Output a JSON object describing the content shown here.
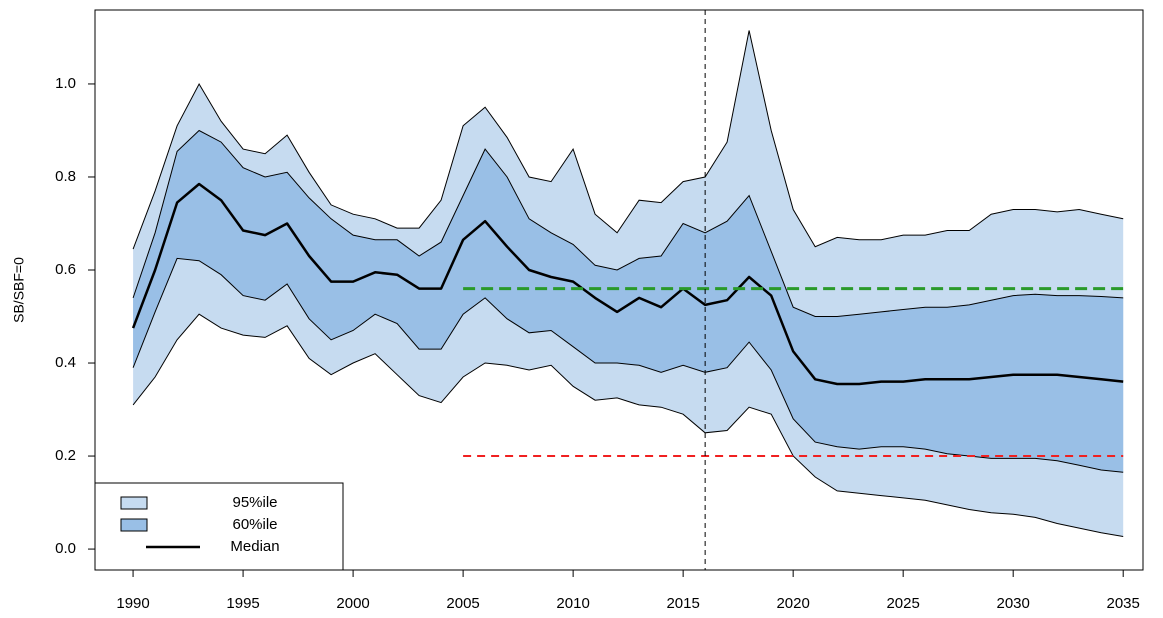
{
  "chart_data": {
    "type": "band",
    "y_label": "SB/SBF=0",
    "x": [
      1990,
      1991,
      1992,
      1993,
      1994,
      1995,
      1996,
      1997,
      1998,
      1999,
      2000,
      2001,
      2002,
      2003,
      2004,
      2005,
      2006,
      2007,
      2008,
      2009,
      2010,
      2011,
      2012,
      2013,
      2014,
      2015,
      2016,
      2017,
      2018,
      2019,
      2020,
      2021,
      2022,
      2023,
      2024,
      2025,
      2026,
      2027,
      2028,
      2029,
      2030,
      2031,
      2032,
      2033,
      2034,
      2035
    ],
    "bands": [
      {
        "name": "95%ile",
        "color": "#c6dbf0",
        "upper": [
          0.645,
          0.77,
          0.91,
          1.0,
          0.92,
          0.86,
          0.85,
          0.89,
          0.81,
          0.74,
          0.72,
          0.71,
          0.69,
          0.69,
          0.75,
          0.91,
          0.95,
          0.885,
          0.8,
          0.79,
          0.86,
          0.72,
          0.68,
          0.75,
          0.745,
          0.79,
          0.8,
          0.875,
          1.115,
          0.9,
          0.73,
          0.65,
          0.67,
          0.665,
          0.665,
          0.675,
          0.675,
          0.685,
          0.685,
          0.72,
          0.73,
          0.73,
          0.725,
          0.73,
          0.72,
          0.71
        ],
        "lower": [
          0.31,
          0.37,
          0.45,
          0.505,
          0.475,
          0.46,
          0.455,
          0.48,
          0.41,
          0.375,
          0.4,
          0.42,
          0.375,
          0.33,
          0.315,
          0.37,
          0.4,
          0.395,
          0.385,
          0.395,
          0.35,
          0.32,
          0.325,
          0.31,
          0.305,
          0.29,
          0.25,
          0.255,
          0.305,
          0.29,
          0.2,
          0.155,
          0.125,
          0.12,
          0.115,
          0.11,
          0.105,
          0.095,
          0.085,
          0.078,
          0.075,
          0.068,
          0.055,
          0.045,
          0.035,
          0.027
        ]
      },
      {
        "name": "60%ile",
        "color": "#99bfe6",
        "upper": [
          0.54,
          0.68,
          0.855,
          0.9,
          0.875,
          0.82,
          0.8,
          0.81,
          0.755,
          0.71,
          0.675,
          0.665,
          0.665,
          0.63,
          0.66,
          0.76,
          0.86,
          0.8,
          0.71,
          0.68,
          0.655,
          0.61,
          0.6,
          0.625,
          0.63,
          0.7,
          0.68,
          0.705,
          0.76,
          0.64,
          0.52,
          0.5,
          0.5,
          0.505,
          0.51,
          0.515,
          0.52,
          0.52,
          0.525,
          0.535,
          0.545,
          0.548,
          0.545,
          0.545,
          0.543,
          0.54
        ],
        "lower": [
          0.39,
          0.51,
          0.625,
          0.62,
          0.59,
          0.545,
          0.535,
          0.57,
          0.495,
          0.45,
          0.47,
          0.505,
          0.485,
          0.43,
          0.43,
          0.505,
          0.54,
          0.495,
          0.465,
          0.47,
          0.435,
          0.4,
          0.4,
          0.395,
          0.38,
          0.395,
          0.38,
          0.39,
          0.445,
          0.385,
          0.28,
          0.23,
          0.22,
          0.215,
          0.22,
          0.22,
          0.215,
          0.205,
          0.2,
          0.195,
          0.195,
          0.195,
          0.19,
          0.18,
          0.17,
          0.165
        ]
      }
    ],
    "series": [
      {
        "name": "Median",
        "color": "#000000",
        "values": [
          0.475,
          0.6,
          0.745,
          0.785,
          0.75,
          0.685,
          0.675,
          0.7,
          0.63,
          0.575,
          0.575,
          0.595,
          0.59,
          0.56,
          0.56,
          0.665,
          0.705,
          0.65,
          0.6,
          0.585,
          0.575,
          0.54,
          0.51,
          0.54,
          0.52,
          0.56,
          0.525,
          0.535,
          0.585,
          0.545,
          0.425,
          0.365,
          0.355,
          0.355,
          0.36,
          0.36,
          0.365,
          0.365,
          0.365,
          0.37,
          0.375,
          0.375,
          0.375,
          0.37,
          0.365,
          0.36
        ]
      }
    ],
    "hlines": [
      {
        "y": 0.56,
        "x": [
          2005,
          2035
        ],
        "color": "#2a9a2a"
      },
      {
        "y": 0.2,
        "x": [
          2005,
          2035
        ],
        "color": "#f02020"
      }
    ],
    "vlines": [
      {
        "x": 2016,
        "color": "#000000"
      }
    ],
    "xlim": [
      1988.27,
      2035.9
    ],
    "ylim": [
      -0.045,
      1.159
    ],
    "xticks": [
      1990,
      1995,
      2000,
      2005,
      2010,
      2015,
      2020,
      2025,
      2030,
      2035
    ],
    "yticks": [
      {
        "value": 0,
        "label": "0.0"
      },
      0.2,
      0.4,
      0.6,
      0.8,
      {
        "value": 1,
        "label": "1.0"
      }
    ],
    "legend": "bottom-left"
  }
}
